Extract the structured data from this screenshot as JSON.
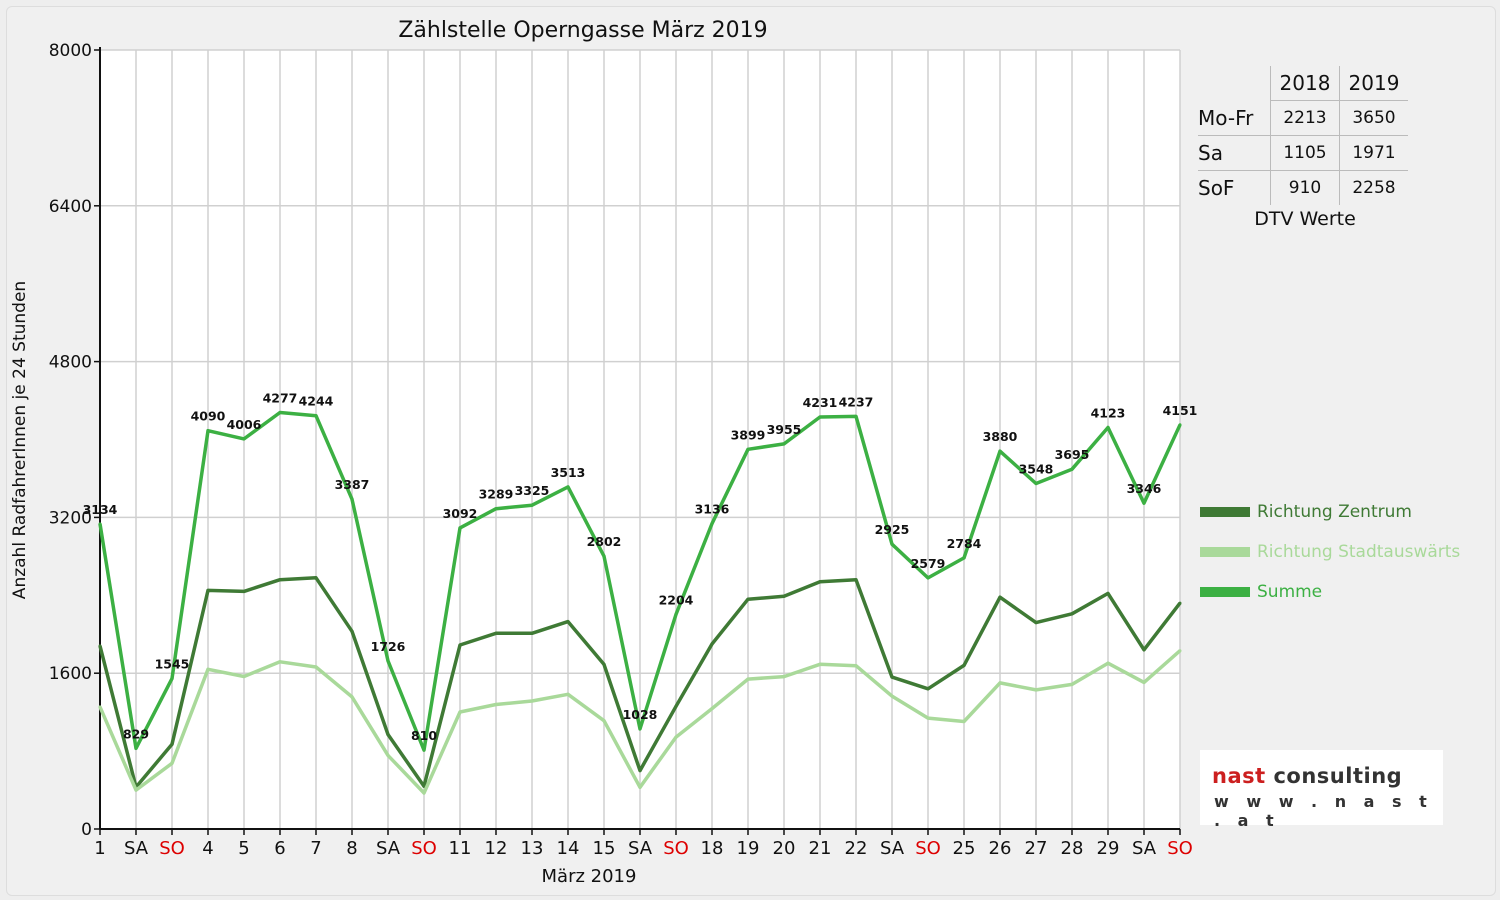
{
  "title": "Zählstelle Operngasse März 2019",
  "logo": {
    "brand_red": "nast",
    "brand_rest": " consulting",
    "url": "w w w . n a s t . a t"
  },
  "dtv": {
    "years": [
      "2018",
      "2019"
    ],
    "rows": [
      {
        "label": "Mo-Fr",
        "v2018": "2213",
        "v2019": "3650"
      },
      {
        "label": "Sa",
        "v2018": "1105",
        "v2019": "1971"
      },
      {
        "label": "SoF",
        "v2018": "910",
        "v2019": "2258"
      }
    ],
    "caption": "DTV Werte"
  },
  "colors": {
    "zentrum": "#3f7a35",
    "stadtauswaerts": "#a9d99a",
    "summe": "#3cb043",
    "sunday": "#dd0000",
    "grid": "#d0d0d0"
  },
  "chart_data": {
    "type": "line",
    "title": "Zählstelle Operngasse März 2019",
    "xlabel": "März 2019",
    "ylabel": "Anzahl RadfahrerInnen je 24 Stunden",
    "ylim": [
      0,
      8000
    ],
    "yticks": [
      0,
      1600,
      3200,
      4800,
      6400,
      8000
    ],
    "grid": true,
    "legend_position": "right",
    "categories": [
      "1",
      "SA",
      "SO",
      "4",
      "5",
      "6",
      "7",
      "8",
      "SA",
      "SO",
      "11",
      "12",
      "13",
      "14",
      "15",
      "SA",
      "SO",
      "18",
      "19",
      "20",
      "21",
      "22",
      "SA",
      "SO",
      "25",
      "26",
      "27",
      "28",
      "29",
      "SA",
      "SO"
    ],
    "sunday_flags": [
      false,
      false,
      true,
      false,
      false,
      false,
      false,
      false,
      false,
      true,
      false,
      false,
      false,
      false,
      false,
      false,
      true,
      false,
      false,
      false,
      false,
      false,
      false,
      true,
      false,
      false,
      false,
      false,
      false,
      false,
      true
    ],
    "series": [
      {
        "name": "Richtung Zentrum",
        "values": [
          1880,
          430,
          870,
          2450,
          2440,
          2560,
          2580,
          2030,
          970,
          440,
          1890,
          2010,
          2010,
          2130,
          1690,
          600,
          1260,
          1900,
          2360,
          2390,
          2540,
          2560,
          1560,
          1440,
          1680,
          2380,
          2120,
          2210,
          2420,
          1840,
          2320
        ]
      },
      {
        "name": "Richtung Stadtauswärts",
        "values": [
          1254,
          399,
          675,
          1640,
          1566,
          1717,
          1664,
          1357,
          756,
          370,
          1202,
          1279,
          1315,
          1383,
          1112,
          428,
          944,
          1236,
          1539,
          1565,
          1691,
          1677,
          1365,
          1139,
          1104,
          1500,
          1428,
          1485,
          1703,
          1506,
          1831
        ]
      },
      {
        "name": "Summe",
        "values": [
          3134,
          829,
          1545,
          4090,
          4006,
          4277,
          4244,
          3387,
          1726,
          810,
          3092,
          3289,
          3325,
          3513,
          2802,
          1028,
          2204,
          3136,
          3899,
          3955,
          4231,
          4237,
          2925,
          2579,
          2784,
          3880,
          3548,
          3695,
          4123,
          3346,
          4151
        ]
      }
    ],
    "data_labels": [
      3134,
      829,
      1545,
      4090,
      4006,
      4277,
      4244,
      3387,
      1726,
      810,
      3092,
      3289,
      3325,
      3513,
      2802,
      1028,
      2204,
      3136,
      3899,
      3955,
      4231,
      4237,
      2925,
      2579,
      2784,
      3880,
      3548,
      3695,
      4123,
      3346,
      4151
    ]
  }
}
